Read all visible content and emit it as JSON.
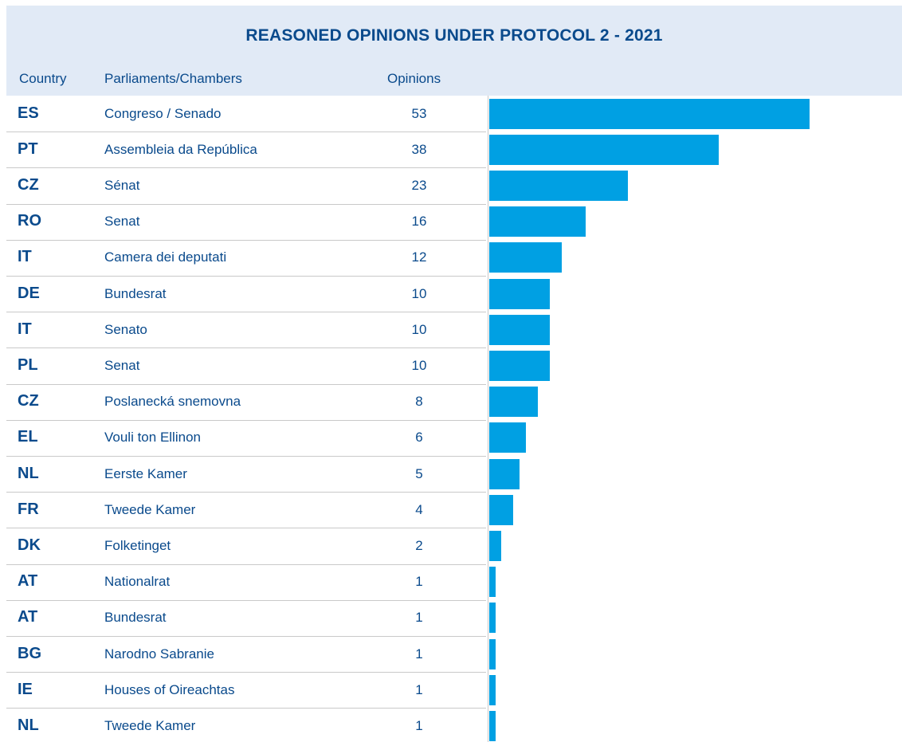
{
  "title": "REASONED OPINIONS UNDER PROTOCOL 2 - 2021",
  "columns": {
    "country": "Country",
    "parliament": "Parliaments/Chambers",
    "opinions": "Opinions"
  },
  "colors": {
    "bar": "#00a0e3",
    "text": "#0a4a8c",
    "header_bg": "#e1eaf6"
  },
  "chart_data": {
    "type": "bar",
    "orientation": "horizontal",
    "title": "REASONED OPINIONS UNDER PROTOCOL 2 - 2021",
    "xlim": [
      0,
      60
    ],
    "rows": [
      {
        "country": "ES",
        "parliament": "Congreso / Senado",
        "value": 53
      },
      {
        "country": "PT",
        "parliament": "Assembleia da República",
        "value": 38
      },
      {
        "country": "CZ",
        "parliament": "Sénat",
        "value": 23
      },
      {
        "country": "RO",
        "parliament": "Senat",
        "value": 16
      },
      {
        "country": "IT",
        "parliament": "Camera dei deputati",
        "value": 12
      },
      {
        "country": "DE",
        "parliament": "Bundesrat",
        "value": 10
      },
      {
        "country": "IT",
        "parliament": "Senato",
        "value": 10
      },
      {
        "country": "PL",
        "parliament": "Senat",
        "value": 10
      },
      {
        "country": "CZ",
        "parliament": "Poslanecká snemovna",
        "value": 8
      },
      {
        "country": "EL",
        "parliament": "Vouli ton Ellinon",
        "value": 6
      },
      {
        "country": "NL",
        "parliament": "Eerste Kamer",
        "value": 5
      },
      {
        "country": "FR",
        "parliament": "Tweede Kamer",
        "value": 4
      },
      {
        "country": "DK",
        "parliament": "Folketinget",
        "value": 2
      },
      {
        "country": "AT",
        "parliament": "Nationalrat",
        "value": 1
      },
      {
        "country": "AT",
        "parliament": "Bundesrat",
        "value": 1
      },
      {
        "country": "BG",
        "parliament": "Narodno Sabranie",
        "value": 1
      },
      {
        "country": "IE",
        "parliament": "Houses of Oireachtas",
        "value": 1
      },
      {
        "country": "NL",
        "parliament": "Tweede Kamer",
        "value": 1
      }
    ]
  }
}
